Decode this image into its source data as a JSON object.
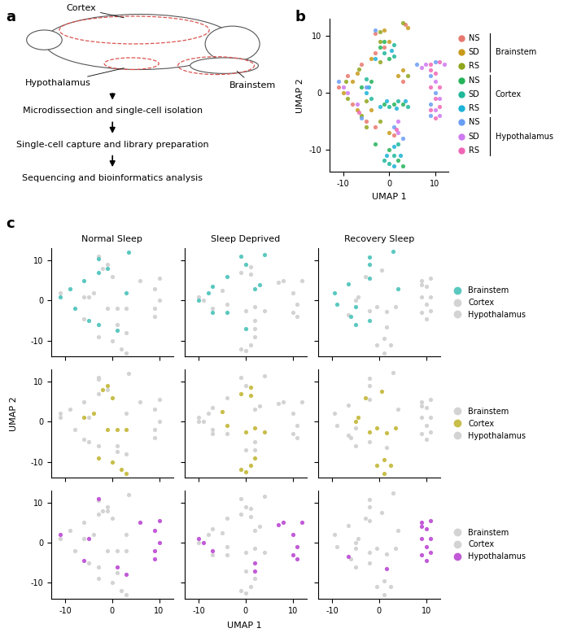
{
  "panels": [
    "a",
    "b",
    "c"
  ],
  "diagram": {
    "regions": [
      "Cortex",
      "Hypothalamus",
      "Brainstem"
    ],
    "steps": [
      "Microdissection and single-cell isolation",
      "Single-cell capture and library preparation",
      "Sequencing and bioinformatics analysis"
    ]
  },
  "chart_data": [
    {
      "type": "scatter",
      "x_label": "UMAP 1",
      "y_label": "UMAP 2",
      "xlim": [
        -13,
        13
      ],
      "ylim": [
        -14,
        13
      ],
      "xticks": [
        -10,
        0,
        10
      ],
      "yticks": [
        -10,
        0,
        10
      ],
      "legend": "right",
      "series": [
        {
          "name": "NS",
          "group": "Brainstem",
          "color": "#e8776e",
          "x": [
            -3,
            3.5,
            -3,
            -6,
            -9,
            -11,
            -8,
            -5,
            -3,
            1,
            3,
            -1
          ],
          "y": [
            10.5,
            12,
            7,
            5,
            3,
            1,
            -2,
            -5,
            -6,
            -7.5,
            2,
            8
          ]
        },
        {
          "name": "SD",
          "group": "Brainstem",
          "color": "#c89a1a",
          "x": [
            -1,
            4,
            -4,
            -7,
            -8,
            -10,
            -7,
            -4,
            0,
            3,
            0,
            2
          ],
          "y": [
            11,
            11.5,
            6,
            3.5,
            2,
            0,
            -3,
            -3,
            -7,
            4,
            9,
            3
          ]
        },
        {
          "name": "RS",
          "group": "Brainstem",
          "color": "#8fa61c",
          "x": [
            -2,
            3,
            -2,
            -6.5,
            -9.5,
            -9,
            -6,
            -5,
            -2,
            4,
            -2,
            -5
          ],
          "y": [
            10.8,
            12.3,
            5.5,
            4.2,
            2,
            -1,
            -4,
            -6,
            -5,
            3,
            9,
            -1.5
          ]
        },
        {
          "name": "NS",
          "group": "Cortex",
          "color": "#25b35a",
          "x": [
            -2,
            0,
            -4,
            -6,
            -1,
            1,
            3,
            0,
            2,
            3,
            -3,
            -1
          ],
          "y": [
            8,
            6,
            2,
            1,
            -2,
            -2,
            -2,
            -10,
            -12,
            -13,
            -9,
            9
          ]
        },
        {
          "name": "SD",
          "group": "Cortex",
          "color": "#1fb89a",
          "x": [
            -1,
            1,
            -5,
            -4,
            0,
            2,
            4,
            1,
            0,
            -1,
            2,
            1
          ],
          "y": [
            7,
            6.5,
            2.5,
            -1,
            -2.5,
            -1.5,
            -2.5,
            -11,
            -12.5,
            -12,
            -9,
            8.5
          ]
        },
        {
          "name": "RS",
          "group": "Cortex",
          "color": "#1cb3d6",
          "x": [
            -3,
            0.5,
            -4.5,
            -5,
            -0.5,
            1.5,
            3.5,
            1,
            2.5,
            -0.5,
            1,
            -2
          ],
          "y": [
            6,
            7.5,
            1,
            0,
            -1.5,
            -2.8,
            -1.5,
            -13,
            -11,
            -11,
            -9.5,
            -2.5
          ]
        },
        {
          "name": "NS",
          "group": "Hypothalamus",
          "color": "#6a9df4",
          "x": [
            6,
            10,
            9,
            10,
            9,
            9,
            1,
            3,
            -6,
            -3,
            -11,
            -5
          ],
          "y": [
            5,
            5.5,
            3,
            0,
            -2,
            -4,
            -6,
            -8,
            -4.5,
            11,
            2,
            1
          ]
        },
        {
          "name": "SD",
          "group": "Hypothalamus",
          "color": "#cf79f0",
          "x": [
            8,
            12,
            10,
            11,
            10,
            11,
            2,
            2,
            -7,
            -10,
            -9,
            7
          ],
          "y": [
            5,
            5,
            2,
            -1,
            -3,
            -4,
            -7,
            -5,
            -2,
            1,
            0,
            4.5
          ]
        },
        {
          "name": "RS",
          "group": "Hypothalamus",
          "color": "#f066b6",
          "x": [
            9,
            11,
            9,
            10,
            11,
            10,
            9,
            11,
            10,
            9,
            1.5,
            -6.5
          ],
          "y": [
            5,
            5.5,
            1,
            -1,
            1,
            -4.5,
            -3,
            -2.5,
            3.5,
            4,
            -6.5,
            -3.5
          ]
        }
      ]
    },
    {
      "type": "scatter",
      "x_label": "UMAP 1",
      "y_label": "UMAP 2",
      "xlim": [
        -13,
        13
      ],
      "ylim": [
        -14,
        13
      ],
      "xticks": [
        -10,
        0,
        10
      ],
      "yticks": [
        -10,
        0,
        10
      ],
      "legend": "center left",
      "color": "#d3d3d3",
      "columns": [
        "Normal Sleep",
        "Sleep Deprived",
        "Recovery Sleep"
      ],
      "rows": [
        {
          "name": "Brainstem",
          "color": "#5bc8c0"
        },
        {
          "name": "Cortex",
          "color": "#c8be4a"
        },
        {
          "name": "Hypothalamus",
          "color": "#c25ad8"
        }
      ]
    }
  ]
}
